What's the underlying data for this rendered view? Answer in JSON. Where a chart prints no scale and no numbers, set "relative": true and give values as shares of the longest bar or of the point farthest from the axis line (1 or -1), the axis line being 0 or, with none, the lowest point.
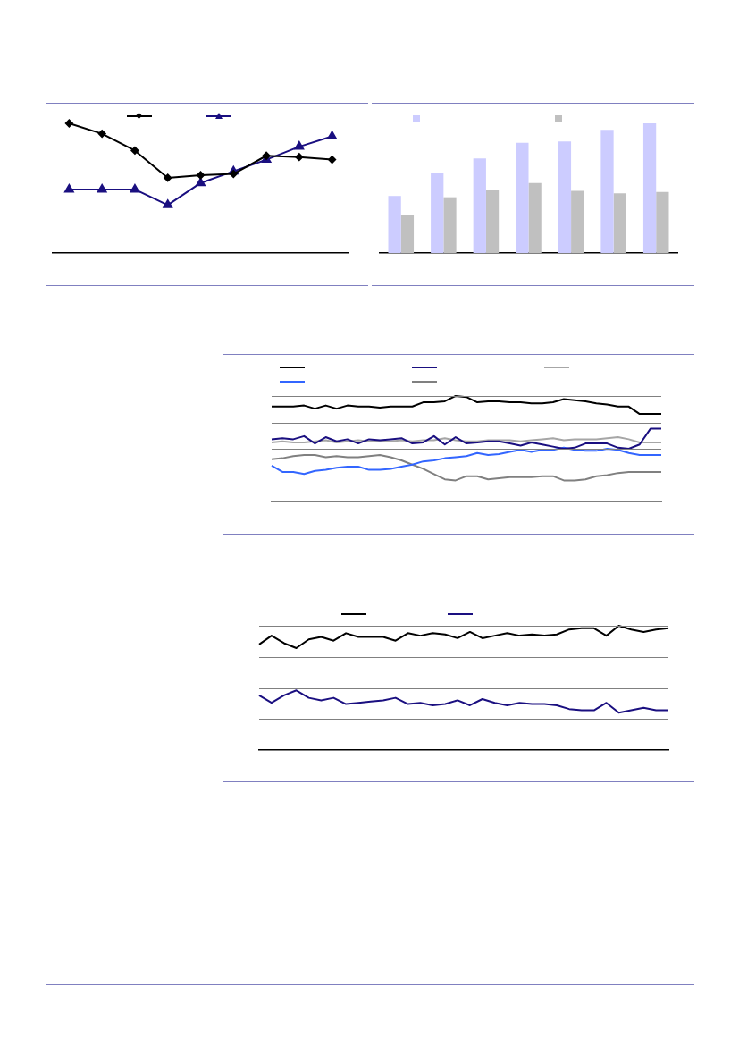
{
  "chart_data": [
    {
      "type": "line",
      "relative": true,
      "tick_labels": false,
      "categories": [
        null,
        null,
        null,
        null,
        null,
        null,
        null,
        null,
        null
      ],
      "series": [
        {
          "color": "#000000",
          "marker": "diamond",
          "values": [
            1.0,
            0.92,
            0.79,
            0.58,
            0.6,
            0.61,
            0.75,
            0.74,
            0.72
          ]
        },
        {
          "color": "#1a0f80",
          "marker": "triangle",
          "values": [
            0.49,
            0.49,
            0.49,
            0.37,
            0.54,
            0.63,
            0.72,
            0.82,
            0.9
          ]
        }
      ]
    },
    {
      "type": "bar",
      "relative": true,
      "tick_labels": false,
      "categories": [
        null,
        null,
        null,
        null,
        null,
        null,
        null
      ],
      "series": [
        {
          "color": "#ccccff",
          "values": [
            0.44,
            0.62,
            0.73,
            0.85,
            0.86,
            0.95,
            1.0
          ]
        },
        {
          "color": "#c0c0c0",
          "values": [
            0.29,
            0.43,
            0.49,
            0.54,
            0.48,
            0.46,
            0.47
          ]
        }
      ]
    },
    {
      "type": "line",
      "relative": true,
      "tick_labels": false,
      "grid": "y",
      "marker": "none",
      "categories": [
        null,
        null,
        null,
        null,
        null,
        null,
        null,
        null,
        null,
        null,
        null,
        null,
        null,
        null,
        null,
        null,
        null,
        null,
        null,
        null,
        null,
        null,
        null,
        null,
        null,
        null,
        null,
        null,
        null,
        null,
        null,
        null,
        null,
        null,
        null,
        null,
        null
      ],
      "series": [
        {
          "color": "#000000",
          "values": [
            0.9,
            0.9,
            0.9,
            0.91,
            0.88,
            0.91,
            0.88,
            0.91,
            0.9,
            0.9,
            0.89,
            0.9,
            0.9,
            0.9,
            0.94,
            0.94,
            0.95,
            1.0,
            0.99,
            0.94,
            0.95,
            0.95,
            0.94,
            0.94,
            0.93,
            0.93,
            0.94,
            0.97,
            0.96,
            0.95,
            0.93,
            0.92,
            0.9,
            0.9,
            0.83,
            0.83,
            0.83
          ]
        },
        {
          "color": "#1a0f80",
          "values": [
            0.59,
            0.6,
            0.59,
            0.62,
            0.55,
            0.61,
            0.57,
            0.59,
            0.55,
            0.59,
            0.58,
            0.59,
            0.6,
            0.55,
            0.56,
            0.62,
            0.54,
            0.61,
            0.55,
            0.56,
            0.57,
            0.57,
            0.55,
            0.53,
            0.56,
            0.54,
            0.52,
            0.5,
            0.51,
            0.55,
            0.55,
            0.55,
            0.51,
            0.5,
            0.54,
            0.69,
            0.69
          ]
        },
        {
          "color": "#a6a6a6",
          "values": [
            0.56,
            0.57,
            0.56,
            0.56,
            0.57,
            0.58,
            0.56,
            0.57,
            0.58,
            0.57,
            0.57,
            0.57,
            0.58,
            0.57,
            0.58,
            0.58,
            0.6,
            0.58,
            0.57,
            0.57,
            0.58,
            0.58,
            0.58,
            0.57,
            0.58,
            0.59,
            0.6,
            0.58,
            0.59,
            0.59,
            0.59,
            0.6,
            0.61,
            0.59,
            0.56,
            0.56,
            0.56
          ]
        },
        {
          "color": "#3366ff",
          "values": [
            0.34,
            0.28,
            0.28,
            0.26,
            0.29,
            0.3,
            0.32,
            0.33,
            0.33,
            0.3,
            0.3,
            0.31,
            0.33,
            0.35,
            0.38,
            0.39,
            0.41,
            0.42,
            0.43,
            0.46,
            0.44,
            0.45,
            0.47,
            0.49,
            0.47,
            0.49,
            0.49,
            0.51,
            0.49,
            0.48,
            0.48,
            0.5,
            0.49,
            0.46,
            0.44,
            0.44,
            0.44
          ]
        },
        {
          "color": "#808080",
          "values": [
            0.4,
            0.41,
            0.43,
            0.44,
            0.44,
            0.42,
            0.43,
            0.42,
            0.42,
            0.43,
            0.44,
            0.42,
            0.39,
            0.35,
            0.31,
            0.26,
            0.21,
            0.2,
            0.24,
            0.24,
            0.21,
            0.22,
            0.23,
            0.23,
            0.23,
            0.24,
            0.24,
            0.2,
            0.2,
            0.21,
            0.24,
            0.25,
            0.27,
            0.28,
            0.28,
            0.28,
            0.28
          ]
        }
      ]
    },
    {
      "type": "line",
      "relative": true,
      "tick_labels": false,
      "grid": "y",
      "marker": "none",
      "categories": [
        null,
        null,
        null,
        null,
        null,
        null,
        null,
        null,
        null,
        null,
        null,
        null,
        null,
        null,
        null,
        null,
        null,
        null,
        null,
        null,
        null,
        null,
        null,
        null,
        null,
        null,
        null,
        null,
        null,
        null,
        null,
        null,
        null,
        null
      ],
      "series": [
        {
          "color": "#000000",
          "values": [
            0.85,
            0.92,
            0.86,
            0.82,
            0.89,
            0.91,
            0.88,
            0.94,
            0.91,
            0.91,
            0.91,
            0.88,
            0.94,
            0.92,
            0.94,
            0.93,
            0.9,
            0.95,
            0.9,
            0.92,
            0.94,
            0.92,
            0.93,
            0.92,
            0.93,
            0.97,
            0.98,
            0.98,
            0.92,
            1.0,
            0.97,
            0.95,
            0.97,
            0.98
          ]
        },
        {
          "color": "#1a0f80",
          "values": [
            0.44,
            0.38,
            0.44,
            0.48,
            0.42,
            0.4,
            0.42,
            0.37,
            0.38,
            0.39,
            0.4,
            0.42,
            0.37,
            0.38,
            0.36,
            0.37,
            0.4,
            0.36,
            0.41,
            0.38,
            0.36,
            0.38,
            0.37,
            0.37,
            0.36,
            0.33,
            0.32,
            0.32,
            0.38,
            0.3,
            0.32,
            0.34,
            0.32,
            0.32
          ]
        }
      ]
    }
  ]
}
